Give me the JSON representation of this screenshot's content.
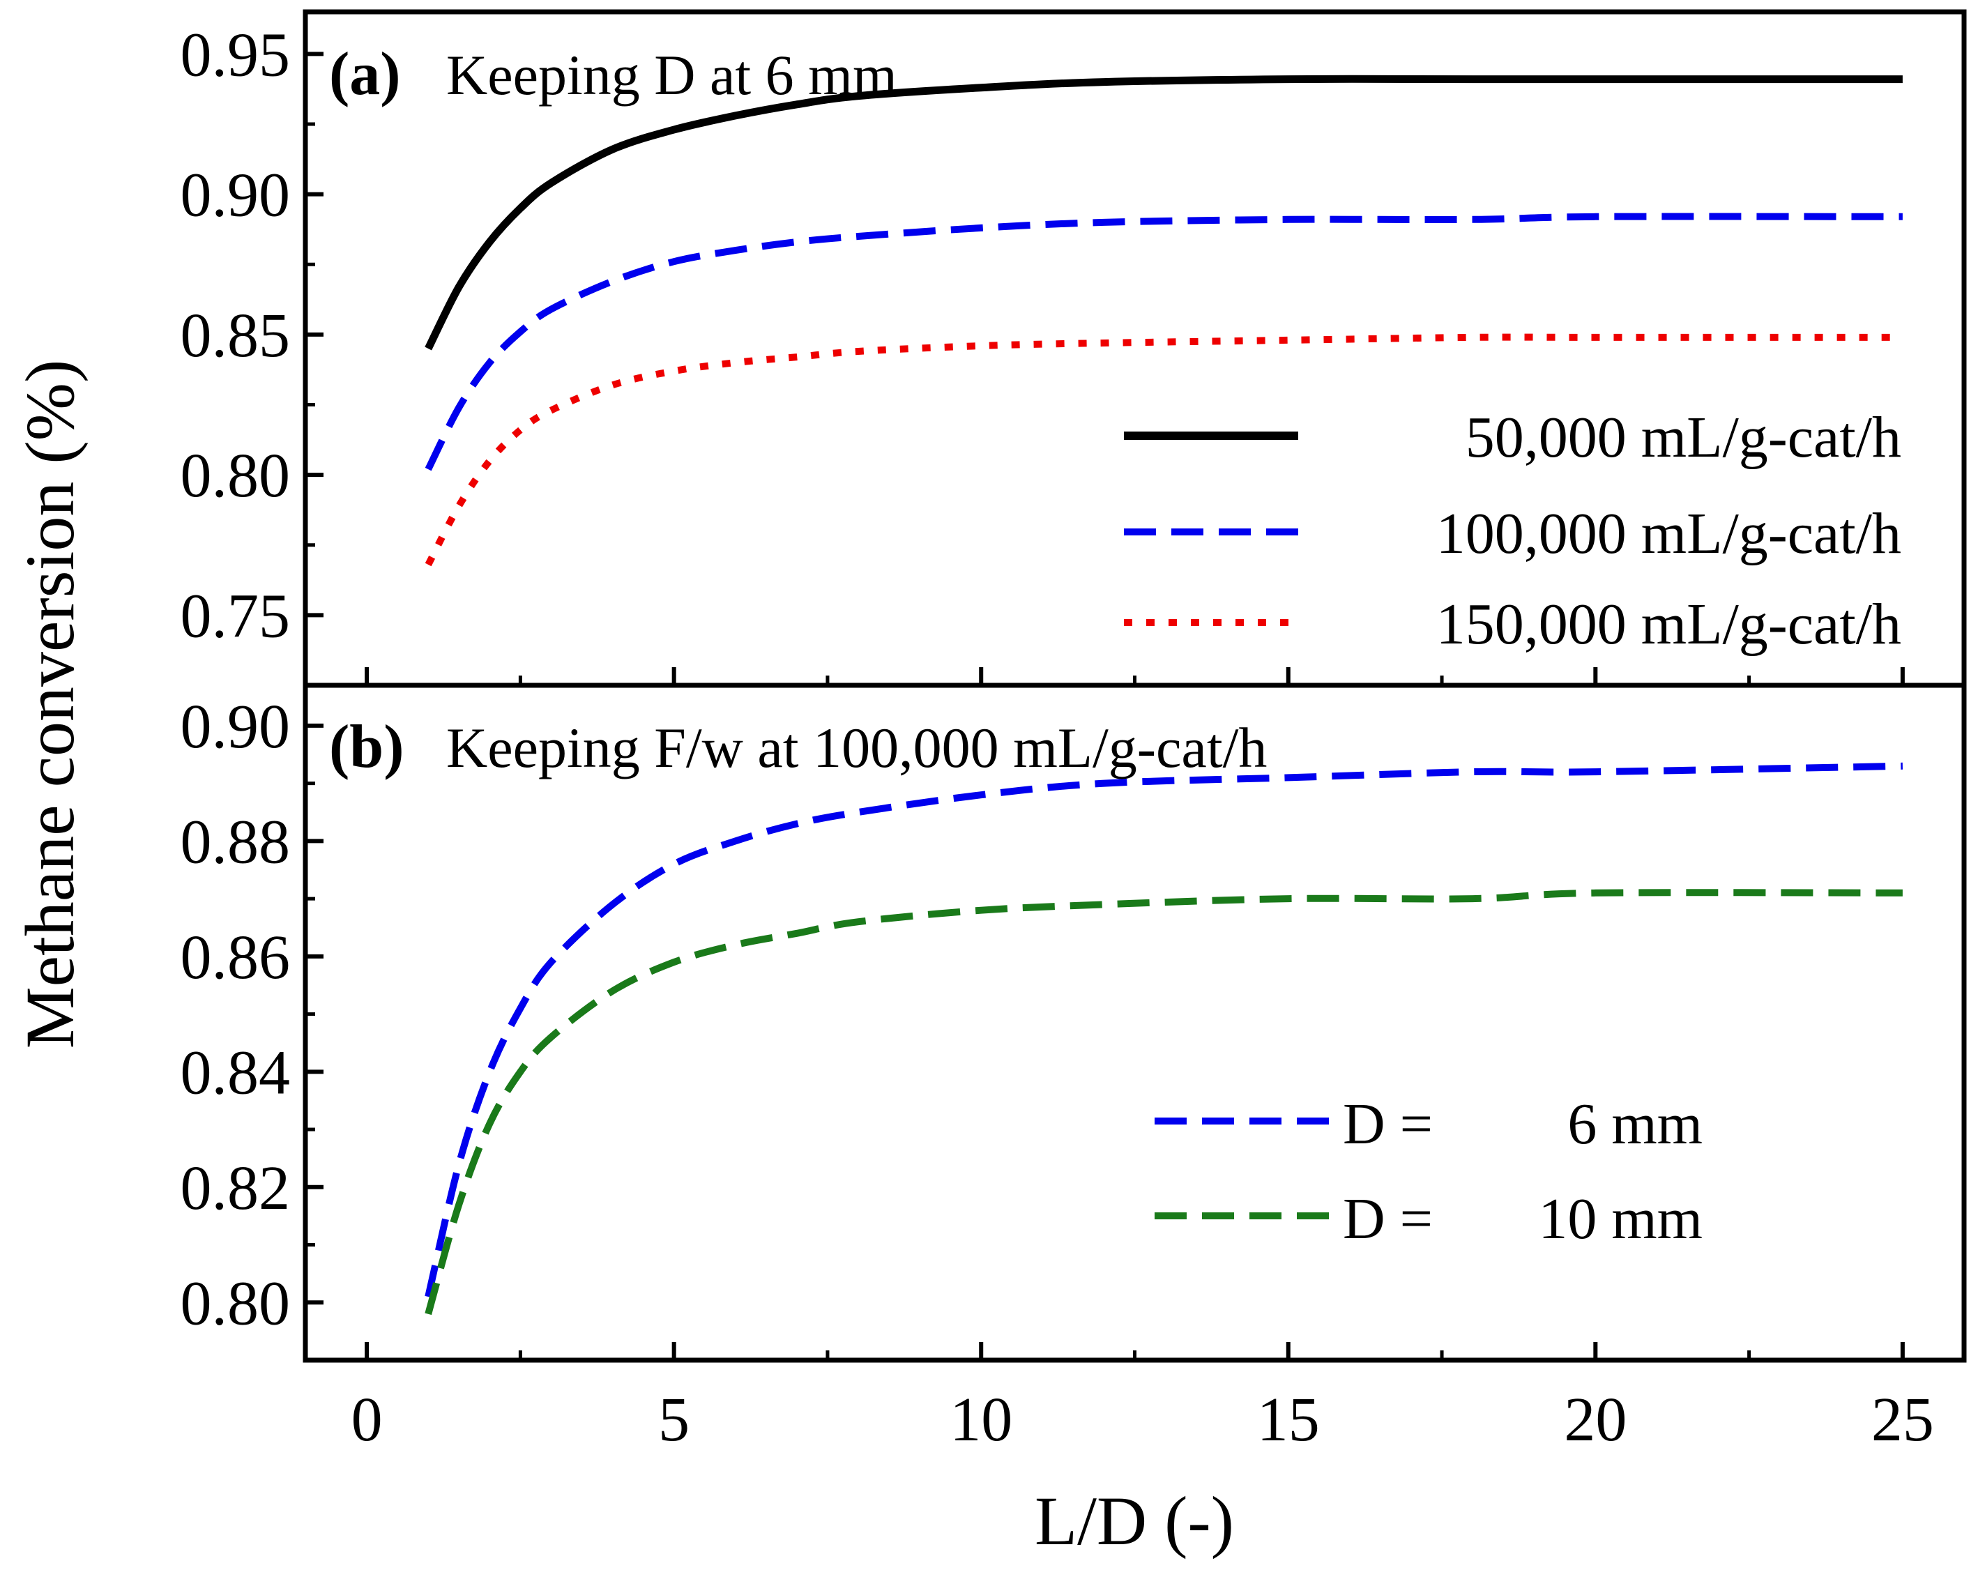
{
  "chart_data": [
    {
      "panel_id": "a",
      "type": "line",
      "panel_label": "(a)",
      "title": "Keeping D at 6 mm",
      "ylabel": "Methane conversion (%)",
      "xlabel": "L/D (-)",
      "xlim": [
        -1,
        26
      ],
      "ylim": [
        0.725,
        0.965
      ],
      "yticks": [
        0.75,
        0.8,
        0.85,
        0.9,
        0.95
      ],
      "ytick_labels": [
        "0.75",
        "0.80",
        "0.85",
        "0.90",
        "0.95"
      ],
      "xticks": [
        0,
        5,
        10,
        15,
        20,
        25
      ],
      "legend_position": "center-right",
      "series": [
        {
          "name": "50,000 mL/g-cat/h",
          "color": "#000000",
          "dash": "solid",
          "x": [
            1,
            1.5,
            2,
            2.5,
            3,
            4,
            5,
            6,
            7,
            8,
            10,
            12,
            15,
            18,
            20,
            25
          ],
          "values": [
            0.845,
            0.867,
            0.883,
            0.895,
            0.904,
            0.916,
            0.923,
            0.928,
            0.932,
            0.935,
            0.938,
            0.94,
            0.941,
            0.941,
            0.941,
            0.941
          ]
        },
        {
          "name": "100,000 mL/g-cat/h",
          "color": "#0000ee",
          "dash": "dashed",
          "x": [
            1,
            1.5,
            2,
            2.5,
            3,
            4,
            5,
            6,
            7,
            8,
            10,
            12,
            15,
            18,
            20,
            25
          ],
          "values": [
            0.802,
            0.824,
            0.84,
            0.851,
            0.859,
            0.869,
            0.876,
            0.88,
            0.883,
            0.885,
            0.888,
            0.89,
            0.891,
            0.891,
            0.892,
            0.892
          ]
        },
        {
          "name": "150,000 mL/g-cat/h",
          "color": "#ee0000",
          "dash": "dotted",
          "x": [
            1,
            1.5,
            2,
            2.5,
            3,
            4,
            5,
            6,
            7,
            8,
            10,
            12,
            15,
            18,
            20,
            25
          ],
          "values": [
            0.768,
            0.789,
            0.805,
            0.816,
            0.823,
            0.832,
            0.837,
            0.84,
            0.842,
            0.844,
            0.846,
            0.847,
            0.848,
            0.849,
            0.849,
            0.849
          ]
        }
      ]
    },
    {
      "panel_id": "b",
      "type": "line",
      "panel_label": "(b)",
      "title": "Keeping F/w at 100,000 mL/g-cat/h",
      "ylabel": "Methane conversion (%)",
      "xlabel": "L/D (-)",
      "xlim": [
        -1,
        26
      ],
      "ylim": [
        0.79,
        0.907
      ],
      "yticks": [
        0.8,
        0.82,
        0.84,
        0.86,
        0.88,
        0.9
      ],
      "ytick_labels": [
        "0.80",
        "0.82",
        "0.84",
        "0.86",
        "0.88",
        "0.90"
      ],
      "xticks": [
        0,
        5,
        10,
        15,
        20,
        25
      ],
      "xtick_labels": [
        "0",
        "5",
        "10",
        "15",
        "20",
        "25"
      ],
      "legend_position": "lower-right",
      "series": [
        {
          "name": "D =",
          "value_label": "6 mm",
          "color": "#0000ee",
          "dash": "dashed",
          "x": [
            1,
            1.5,
            2,
            2.5,
            3,
            4,
            5,
            6,
            7,
            8,
            10,
            12,
            15,
            18,
            20,
            25
          ],
          "values": [
            0.801,
            0.824,
            0.84,
            0.851,
            0.859,
            0.869,
            0.876,
            0.88,
            0.883,
            0.885,
            0.888,
            0.89,
            0.891,
            0.892,
            0.892,
            0.893
          ]
        },
        {
          "name": "D =",
          "value_label": "10 mm",
          "color": "#1a7a1a",
          "dash": "dashed",
          "x": [
            1,
            1.5,
            2,
            2.5,
            3,
            4,
            5,
            6,
            7,
            8,
            10,
            12,
            15,
            18,
            20,
            25
          ],
          "values": [
            0.798,
            0.817,
            0.831,
            0.84,
            0.846,
            0.854,
            0.859,
            0.862,
            0.864,
            0.866,
            0.868,
            0.869,
            0.87,
            0.87,
            0.871,
            0.871
          ]
        }
      ]
    }
  ]
}
